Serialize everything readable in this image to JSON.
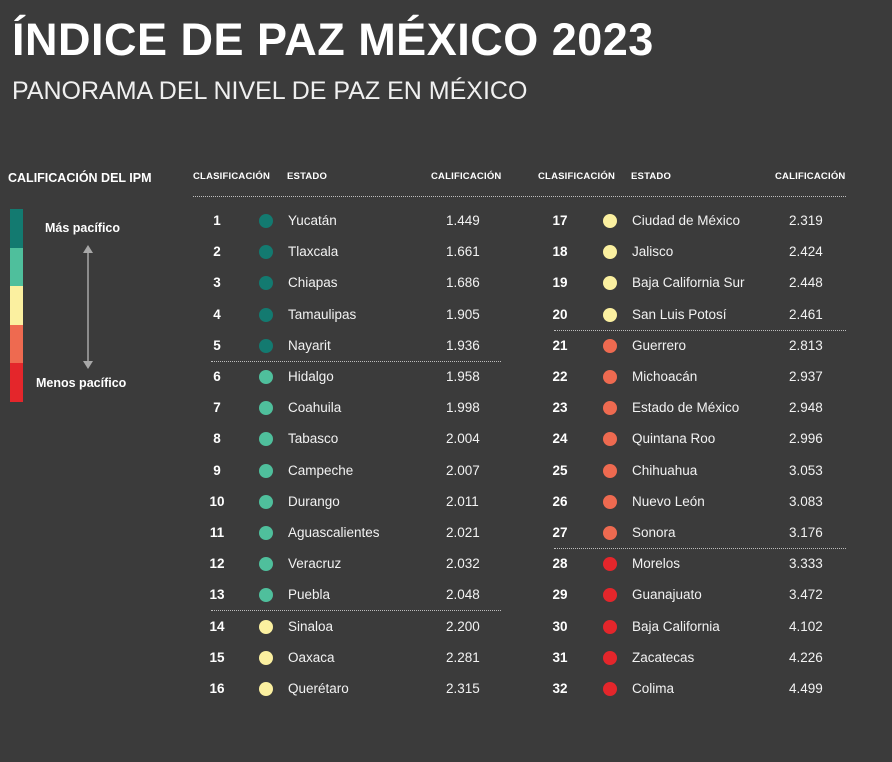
{
  "title": "ÍNDICE DE PAZ MÉXICO 2023",
  "subtitle": "PANORAMA DEL NIVEL DE PAZ EN MÉXICO",
  "legend": {
    "title": "CALIFICACIÓN DEL IPM",
    "top_label": "Más pacífico",
    "bottom_label": "Menos pacífico",
    "colors": [
      "#137a70",
      "#4fbf9c",
      "#fbf0a0",
      "#ee6a50",
      "#e4262b"
    ]
  },
  "headers": {
    "rank": "CLASIFICACIÓN",
    "state": "ESTADO",
    "score": "CALIFICACIÓN"
  },
  "chart_data": {
    "type": "table",
    "columns": [
      "CLASIFICACIÓN",
      "ESTADO",
      "CALIFICACIÓN"
    ],
    "rows": [
      {
        "rank": "1",
        "state": "Yucatán",
        "score": "1.449",
        "color": "#137a70"
      },
      {
        "rank": "2",
        "state": "Tlaxcala",
        "score": "1.661",
        "color": "#137a70"
      },
      {
        "rank": "3",
        "state": "Chiapas",
        "score": "1.686",
        "color": "#137a70"
      },
      {
        "rank": "4",
        "state": "Tamaulipas",
        "score": "1.905",
        "color": "#137a70"
      },
      {
        "rank": "5",
        "state": "Nayarit",
        "score": "1.936",
        "color": "#137a70"
      },
      {
        "rank": "6",
        "state": "Hidalgo",
        "score": "1.958",
        "color": "#4fbf9c"
      },
      {
        "rank": "7",
        "state": "Coahuila",
        "score": "1.998",
        "color": "#4fbf9c"
      },
      {
        "rank": "8",
        "state": "Tabasco",
        "score": "2.004",
        "color": "#4fbf9c"
      },
      {
        "rank": "9",
        "state": "Campeche",
        "score": "2.007",
        "color": "#4fbf9c"
      },
      {
        "rank": "10",
        "state": "Durango",
        "score": "2.011",
        "color": "#4fbf9c"
      },
      {
        "rank": "11",
        "state": "Aguascalientes",
        "score": "2.021",
        "color": "#4fbf9c"
      },
      {
        "rank": "12",
        "state": "Veracruz",
        "score": "2.032",
        "color": "#4fbf9c"
      },
      {
        "rank": "13",
        "state": "Puebla",
        "score": "2.048",
        "color": "#4fbf9c"
      },
      {
        "rank": "14",
        "state": "Sinaloa",
        "score": "2.200",
        "color": "#fbf0a0"
      },
      {
        "rank": "15",
        "state": "Oaxaca",
        "score": "2.281",
        "color": "#fbf0a0"
      },
      {
        "rank": "16",
        "state": "Querétaro",
        "score": "2.315",
        "color": "#fbf0a0"
      },
      {
        "rank": "17",
        "state": "Ciudad de México",
        "score": "2.319",
        "color": "#fbf0a0"
      },
      {
        "rank": "18",
        "state": "Jalisco",
        "score": "2.424",
        "color": "#fbf0a0"
      },
      {
        "rank": "19",
        "state": "Baja California Sur",
        "score": "2.448",
        "color": "#fbf0a0"
      },
      {
        "rank": "20",
        "state": "San Luis Potosí",
        "score": "2.461",
        "color": "#fbf0a0"
      },
      {
        "rank": "21",
        "state": "Guerrero",
        "score": "2.813",
        "color": "#ee6a50"
      },
      {
        "rank": "22",
        "state": "Michoacán",
        "score": "2.937",
        "color": "#ee6a50"
      },
      {
        "rank": "23",
        "state": "Estado de México",
        "score": "2.948",
        "color": "#ee6a50"
      },
      {
        "rank": "24",
        "state": "Quintana Roo",
        "score": "2.996",
        "color": "#ee6a50"
      },
      {
        "rank": "25",
        "state": "Chihuahua",
        "score": "3.053",
        "color": "#ee6a50"
      },
      {
        "rank": "26",
        "state": "Nuevo León",
        "score": "3.083",
        "color": "#ee6a50"
      },
      {
        "rank": "27",
        "state": "Sonora",
        "score": "3.176",
        "color": "#ee6a50"
      },
      {
        "rank": "28",
        "state": "Morelos",
        "score": "3.333",
        "color": "#e4262b"
      },
      {
        "rank": "29",
        "state": "Guanajuato",
        "score": "3.472",
        "color": "#e4262b"
      },
      {
        "rank": "30",
        "state": "Baja California",
        "score": "4.102",
        "color": "#e4262b"
      },
      {
        "rank": "31",
        "state": "Zacatecas",
        "score": "4.226",
        "color": "#e4262b"
      },
      {
        "rank": "32",
        "state": "Colima",
        "score": "4.499",
        "color": "#e4262b"
      }
    ]
  }
}
